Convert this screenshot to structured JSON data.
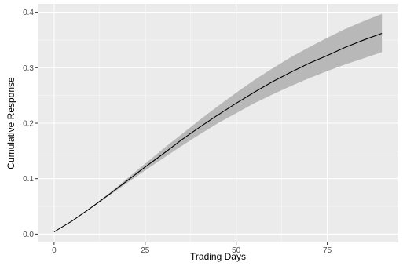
{
  "chart_data": {
    "type": "line",
    "xlabel": "Trading Days",
    "ylabel": "Cumulative Response",
    "xlim": [
      -4.5,
      94.5
    ],
    "ylim": [
      -0.015,
      0.415
    ],
    "x_ticks": [
      0,
      25,
      50,
      75
    ],
    "y_ticks": [
      0.0,
      0.1,
      0.2,
      0.3,
      0.4
    ],
    "x_tick_labels": [
      "0",
      "25",
      "50",
      "75"
    ],
    "y_tick_labels": [
      "0.0",
      "0.1",
      "0.2",
      "0.3",
      "0.4"
    ],
    "grid": true,
    "series": [
      {
        "x": [
          0,
          5,
          10,
          15,
          20,
          25,
          30,
          35,
          40,
          45,
          50,
          55,
          60,
          65,
          70,
          75,
          80,
          85,
          90
        ],
        "y": [
          0.004,
          0.024,
          0.047,
          0.071,
          0.096,
          0.121,
          0.145,
          0.17,
          0.193,
          0.215,
          0.236,
          0.256,
          0.275,
          0.292,
          0.308,
          0.322,
          0.337,
          0.35,
          0.362
        ],
        "lower": [
          0.004,
          0.024,
          0.046,
          0.069,
          0.092,
          0.115,
          0.137,
          0.159,
          0.18,
          0.2,
          0.218,
          0.236,
          0.252,
          0.267,
          0.281,
          0.294,
          0.306,
          0.317,
          0.328
        ],
        "upper": [
          0.004,
          0.024,
          0.048,
          0.073,
          0.1,
          0.127,
          0.154,
          0.18,
          0.206,
          0.231,
          0.255,
          0.278,
          0.299,
          0.319,
          0.337,
          0.354,
          0.37,
          0.384,
          0.397
        ]
      }
    ],
    "colors": {
      "panel": "#ebebeb",
      "grid_major": "#ffffff",
      "ribbon": "#b8b8b8",
      "line": "#000000"
    }
  }
}
